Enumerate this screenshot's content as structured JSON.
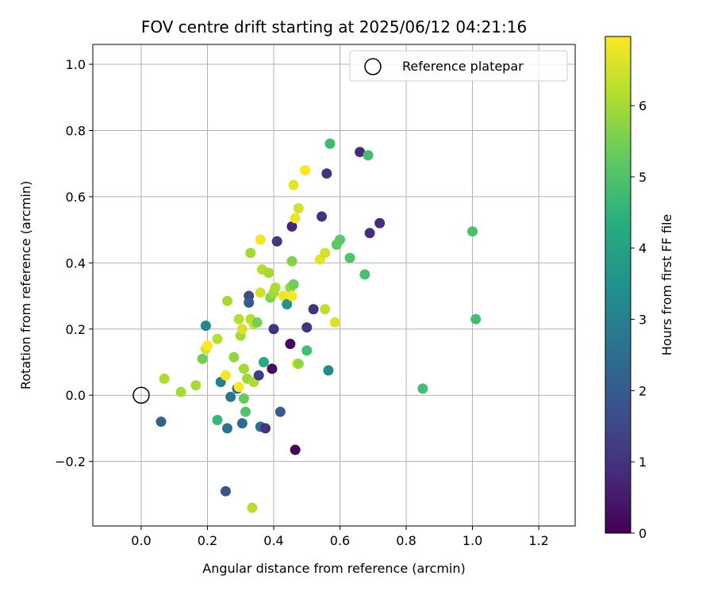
{
  "chart_data": {
    "type": "scatter",
    "title": "FOV centre drift starting at 2025/06/12 04:21:16",
    "xlabel": "Angular distance from reference (arcmin)",
    "ylabel": "Rotation from reference (arcmin)",
    "xlim": [
      -0.146,
      1.31
    ],
    "ylim": [
      -0.395,
      1.06
    ],
    "xticks": [
      "0.0",
      "0.2",
      "0.4",
      "0.6",
      "0.8",
      "1.0",
      "1.2"
    ],
    "xtick_values": [
      0,
      0.2,
      0.4,
      0.6,
      0.8,
      1.0,
      1.2
    ],
    "yticks": [
      "−0.2",
      "0.0",
      "0.2",
      "0.4",
      "0.6",
      "0.8",
      "1.0"
    ],
    "ytick_values": [
      -0.2,
      0,
      0.2,
      0.4,
      0.6,
      0.8,
      1.0
    ],
    "grid": true,
    "colormap": "viridis",
    "colorbar": {
      "label": "Hours from first FF file",
      "range": [
        0,
        6.97
      ],
      "ticks": [
        "0",
        "1",
        "2",
        "3",
        "4",
        "5",
        "6"
      ],
      "tick_values": [
        0,
        1,
        2,
        3,
        4,
        5,
        6
      ]
    },
    "legend": {
      "position": "top-right",
      "entries": [
        {
          "label": "Reference platepar",
          "marker": "open-circle"
        }
      ]
    },
    "reference_point": {
      "x": 0.0,
      "y": 0.0,
      "marker": "open-circle"
    },
    "points": [
      {
        "x": 0.06,
        "y": -0.08,
        "c": 2.2
      },
      {
        "x": 0.07,
        "y": 0.05,
        "c": 6.1
      },
      {
        "x": 0.12,
        "y": 0.01,
        "c": 6.0
      },
      {
        "x": 0.165,
        "y": 0.03,
        "c": 6.0
      },
      {
        "x": 0.185,
        "y": 0.11,
        "c": 5.4
      },
      {
        "x": 0.195,
        "y": 0.21,
        "c": 3.2
      },
      {
        "x": 0.195,
        "y": 0.14,
        "c": 6.5
      },
      {
        "x": 0.2,
        "y": 0.15,
        "c": 7.0
      },
      {
        "x": 0.23,
        "y": 0.17,
        "c": 6.2
      },
      {
        "x": 0.23,
        "y": -0.075,
        "c": 4.6
      },
      {
        "x": 0.24,
        "y": 0.04,
        "c": 3.0
      },
      {
        "x": 0.255,
        "y": 0.06,
        "c": 6.9
      },
      {
        "x": 0.26,
        "y": 0.285,
        "c": 6.0
      },
      {
        "x": 0.26,
        "y": -0.1,
        "c": 2.6
      },
      {
        "x": 0.255,
        "y": -0.29,
        "c": 1.8
      },
      {
        "x": 0.27,
        "y": -0.005,
        "c": 2.7
      },
      {
        "x": 0.28,
        "y": 0.115,
        "c": 5.8
      },
      {
        "x": 0.29,
        "y": 0.02,
        "c": 2.3
      },
      {
        "x": 0.295,
        "y": 0.23,
        "c": 6.2
      },
      {
        "x": 0.295,
        "y": 0.025,
        "c": 7.0
      },
      {
        "x": 0.3,
        "y": 0.18,
        "c": 6.0
      },
      {
        "x": 0.305,
        "y": 0.2,
        "c": 6.6
      },
      {
        "x": 0.305,
        "y": -0.085,
        "c": 2.4
      },
      {
        "x": 0.31,
        "y": 0.08,
        "c": 6.0
      },
      {
        "x": 0.31,
        "y": -0.01,
        "c": 5.3
      },
      {
        "x": 0.315,
        "y": -0.05,
        "c": 5.0
      },
      {
        "x": 0.32,
        "y": 0.05,
        "c": 5.9
      },
      {
        "x": 0.325,
        "y": 0.3,
        "c": 1.6
      },
      {
        "x": 0.325,
        "y": 0.28,
        "c": 2.0
      },
      {
        "x": 0.33,
        "y": 0.23,
        "c": 6.2
      },
      {
        "x": 0.33,
        "y": 0.43,
        "c": 6.0
      },
      {
        "x": 0.335,
        "y": -0.34,
        "c": 6.2
      },
      {
        "x": 0.34,
        "y": 0.04,
        "c": 6.1
      },
      {
        "x": 0.34,
        "y": 0.215,
        "c": 6.3
      },
      {
        "x": 0.35,
        "y": 0.22,
        "c": 5.5
      },
      {
        "x": 0.355,
        "y": 0.06,
        "c": 1.3
      },
      {
        "x": 0.36,
        "y": -0.095,
        "c": 2.5
      },
      {
        "x": 0.36,
        "y": 0.31,
        "c": 6.5
      },
      {
        "x": 0.36,
        "y": 0.47,
        "c": 6.9
      },
      {
        "x": 0.365,
        "y": 0.38,
        "c": 6.2
      },
      {
        "x": 0.37,
        "y": 0.1,
        "c": 4.2
      },
      {
        "x": 0.375,
        "y": -0.1,
        "c": 1.0
      },
      {
        "x": 0.385,
        "y": 0.37,
        "c": 6.0
      },
      {
        "x": 0.39,
        "y": 0.295,
        "c": 5.6
      },
      {
        "x": 0.395,
        "y": 0.08,
        "c": 0.2
      },
      {
        "x": 0.4,
        "y": 0.2,
        "c": 1.0
      },
      {
        "x": 0.4,
        "y": 0.31,
        "c": 6.0
      },
      {
        "x": 0.405,
        "y": 0.325,
        "c": 6.1
      },
      {
        "x": 0.41,
        "y": 0.465,
        "c": 1.1
      },
      {
        "x": 0.42,
        "y": -0.05,
        "c": 2.0
      },
      {
        "x": 0.43,
        "y": 0.3,
        "c": 6.8
      },
      {
        "x": 0.44,
        "y": 0.275,
        "c": 3.6
      },
      {
        "x": 0.45,
        "y": 0.325,
        "c": 5.8
      },
      {
        "x": 0.45,
        "y": 0.155,
        "c": 0.1
      },
      {
        "x": 0.455,
        "y": 0.51,
        "c": 0.7
      },
      {
        "x": 0.455,
        "y": 0.405,
        "c": 5.6
      },
      {
        "x": 0.455,
        "y": 0.3,
        "c": 6.9
      },
      {
        "x": 0.46,
        "y": 0.635,
        "c": 6.7
      },
      {
        "x": 0.46,
        "y": 0.335,
        "c": 5.4
      },
      {
        "x": 0.465,
        "y": 0.535,
        "c": 6.8
      },
      {
        "x": 0.465,
        "y": -0.165,
        "c": 0.1
      },
      {
        "x": 0.47,
        "y": 0.095,
        "c": 6.9
      },
      {
        "x": 0.475,
        "y": 0.565,
        "c": 6.5
      },
      {
        "x": 0.475,
        "y": 0.095,
        "c": 5.8
      },
      {
        "x": 0.495,
        "y": 0.68,
        "c": 7.0
      },
      {
        "x": 0.5,
        "y": 0.205,
        "c": 1.0
      },
      {
        "x": 0.5,
        "y": 0.135,
        "c": 4.8
      },
      {
        "x": 0.52,
        "y": 0.26,
        "c": 1.0
      },
      {
        "x": 0.54,
        "y": 0.41,
        "c": 6.7
      },
      {
        "x": 0.545,
        "y": 0.54,
        "c": 1.0
      },
      {
        "x": 0.555,
        "y": 0.43,
        "c": 6.5
      },
      {
        "x": 0.555,
        "y": 0.26,
        "c": 6.3
      },
      {
        "x": 0.56,
        "y": 0.67,
        "c": 1.0
      },
      {
        "x": 0.565,
        "y": 0.075,
        "c": 3.3
      },
      {
        "x": 0.57,
        "y": 0.76,
        "c": 4.7
      },
      {
        "x": 0.585,
        "y": 0.22,
        "c": 6.6
      },
      {
        "x": 0.59,
        "y": 0.455,
        "c": 5.2
      },
      {
        "x": 0.6,
        "y": 0.47,
        "c": 5.2
      },
      {
        "x": 0.63,
        "y": 0.415,
        "c": 5.0
      },
      {
        "x": 0.66,
        "y": 0.735,
        "c": 0.8
      },
      {
        "x": 0.675,
        "y": 0.365,
        "c": 4.9
      },
      {
        "x": 0.685,
        "y": 0.725,
        "c": 4.8
      },
      {
        "x": 0.69,
        "y": 0.49,
        "c": 0.9
      },
      {
        "x": 0.72,
        "y": 0.52,
        "c": 0.9
      },
      {
        "x": 0.85,
        "y": 0.02,
        "c": 4.8
      },
      {
        "x": 1.0,
        "y": 0.495,
        "c": 4.9
      },
      {
        "x": 1.01,
        "y": 0.23,
        "c": 4.8
      }
    ]
  }
}
